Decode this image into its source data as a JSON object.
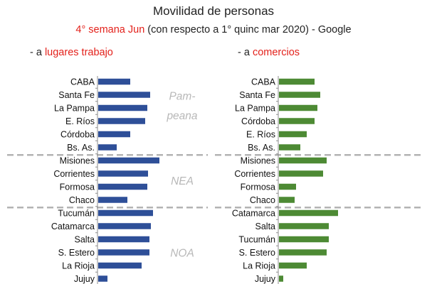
{
  "title": "Movilidad de personas",
  "subtitle_red": "4° semana Jun",
  "subtitle_rest": " (con respecto a  1° quinc mar 2020) - Google",
  "panels": [
    {
      "prefix": "- a ",
      "title": "lugares trabajo"
    },
    {
      "prefix": "- a ",
      "title": "comercios"
    }
  ],
  "colors": {
    "left_bar": "#2e4f98",
    "right_bar": "#4d8a34",
    "divider": "#b3b3b3",
    "region_label": "#b8b8b8",
    "highlight": "#e3211b"
  },
  "chart_data": [
    {
      "type": "bar",
      "orientation": "horizontal",
      "title": "lugares trabajo",
      "categories": [
        "CABA",
        "Santa Fe",
        "La Pampa",
        "E. Ríos",
        "Córdoba",
        "Bs. As.",
        "Misiones",
        "Corrientes",
        "Formosa",
        "Chaco",
        "Tucumán",
        "Catamarca",
        "Salta",
        "S. Estero",
        "La Rioja",
        "Jujuy"
      ],
      "values": [
        45,
        73,
        69,
        66,
        45,
        26,
        86,
        70,
        69,
        41,
        77,
        74,
        72,
        72,
        61,
        13
      ],
      "groups": [
        {
          "label": "Pam-",
          "label2": "peana",
          "start": 0,
          "end": 5
        },
        {
          "label": "NEA",
          "label2": "",
          "start": 6,
          "end": 9
        },
        {
          "label": "NOA",
          "label2": "",
          "start": 10,
          "end": 15
        }
      ],
      "xlim": [
        0,
        100
      ]
    },
    {
      "type": "bar",
      "orientation": "horizontal",
      "title": "comercios",
      "categories": [
        "CABA",
        "Santa Fe",
        "La Pampa",
        "Córdoba",
        "E. Ríos",
        "Bs. As.",
        "Misiones",
        "Corrientes",
        "Formosa",
        "Chaco",
        "Catamarca",
        "Salta",
        "Tucumán",
        "S. Estero",
        "La Rioja",
        "Jujuy"
      ],
      "values": [
        50,
        58,
        54,
        50,
        39,
        30,
        67,
        62,
        24,
        22,
        83,
        70,
        70,
        67,
        39,
        6
      ],
      "dividers_after": [
        5,
        9
      ],
      "xlim": [
        0,
        100
      ]
    }
  ]
}
